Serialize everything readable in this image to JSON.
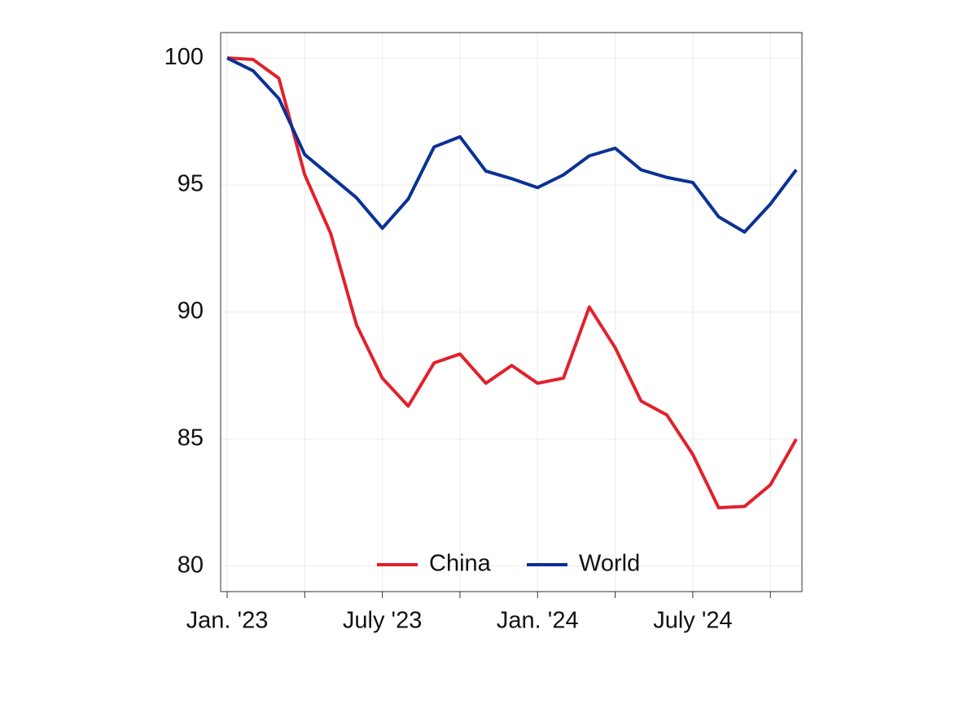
{
  "chart_data": {
    "type": "line",
    "categories": [
      "Jan. '23",
      null,
      null,
      null,
      null,
      null,
      "July '23",
      null,
      null,
      null,
      null,
      null,
      "Jan. '24",
      null,
      null,
      null,
      null,
      null,
      "July '24",
      null,
      null,
      null,
      null
    ],
    "series": [
      {
        "name": "China",
        "color": "#e2212b",
        "values": [
          100,
          99.94,
          99.2,
          95.4,
          93.1,
          89.5,
          87.4,
          86.3,
          88.0,
          88.35,
          87.2,
          87.9,
          87.2,
          87.4,
          90.2,
          88.6,
          86.5,
          85.95,
          84.4,
          82.3,
          82.35,
          83.2,
          85.0
        ]
      },
      {
        "name": "World",
        "color": "#0a3195",
        "values": [
          100,
          99.5,
          98.4,
          96.2,
          95.35,
          94.5,
          93.3,
          94.45,
          96.5,
          96.9,
          95.55,
          95.25,
          94.9,
          95.4,
          96.15,
          96.45,
          95.6,
          95.3,
          95.1,
          93.75,
          93.15,
          94.25,
          95.6
        ]
      }
    ],
    "ylim": [
      79,
      101
    ],
    "yticks": [
      80,
      85,
      90,
      95,
      100
    ],
    "grid": true,
    "legend": "bottom"
  }
}
